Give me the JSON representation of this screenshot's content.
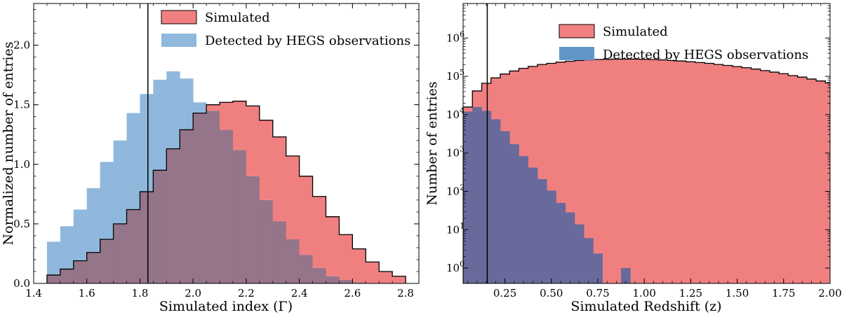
{
  "colors": {
    "simulated": "#f08080",
    "detected_left": "#8fb8dc",
    "overlap_left": "#957589",
    "detected_right": "#6396c8",
    "overlap_right": "#686a9b",
    "edge": "#000000"
  },
  "chart_data": [
    {
      "type": "histogram",
      "xlabel": "Simulated index (Γ)",
      "ylabel": "Normalized number of entries",
      "xlim": [
        1.4,
        2.85
      ],
      "ylim": [
        0,
        2.35
      ],
      "xticks": [
        "1.4",
        "1.6",
        "1.8",
        "2.0",
        "2.2",
        "2.4",
        "2.6",
        "2.8"
      ],
      "yticks": [
        "0.0",
        "0.5",
        "1.0",
        "1.5",
        "2.0"
      ],
      "vline": 1.83,
      "bin_start": 1.45,
      "bin_width": 0.05,
      "legend": {
        "position": "top-right"
      },
      "series": [
        {
          "name": "Simulated",
          "values": [
            0.07,
            0.12,
            0.19,
            0.26,
            0.37,
            0.5,
            0.62,
            0.77,
            0.95,
            1.13,
            1.29,
            1.43,
            1.5,
            1.52,
            1.53,
            1.49,
            1.37,
            1.23,
            1.07,
            0.9,
            0.73,
            0.56,
            0.41,
            0.29,
            0.18,
            0.1,
            0.06
          ]
        },
        {
          "name": "Detected by HEGS observations",
          "values": [
            0.35,
            0.48,
            0.62,
            0.8,
            1.02,
            1.2,
            1.43,
            1.59,
            1.71,
            1.78,
            1.72,
            1.52,
            1.45,
            1.29,
            1.12,
            0.9,
            0.7,
            0.52,
            0.37,
            0.24,
            0.13,
            0.06,
            0.03,
            0.01,
            0.0,
            0.0,
            0.0
          ]
        }
      ]
    },
    {
      "type": "histogram",
      "xlabel": "Simulated Redshift (z)",
      "ylabel": "Number of entries",
      "log_y": true,
      "xlim": [
        0.025,
        2.0
      ],
      "ylim_log10": [
        -0.4,
        6.9
      ],
      "xticks": [
        "0.25",
        "0.50",
        "0.75",
        "1.00",
        "1.25",
        "1.50",
        "1.75",
        "2.00"
      ],
      "yticks": [
        "10^0",
        "10^1",
        "10^2",
        "10^3",
        "10^4",
        "10^5",
        "10^6"
      ],
      "vline": 0.155,
      "bin_start": 0.025,
      "bin_width": 0.05,
      "legend": {
        "position": "top-center"
      },
      "series": [
        {
          "name": "Simulated",
          "values_log10": [
            4.2,
            4.62,
            4.82,
            4.96,
            5.06,
            5.14,
            5.21,
            5.26,
            5.31,
            5.34,
            5.37,
            5.395,
            5.415,
            5.43,
            5.44,
            5.445,
            5.45,
            5.45,
            5.45,
            5.445,
            5.44,
            5.43,
            5.415,
            5.4,
            5.38,
            5.36,
            5.34,
            5.31,
            5.285,
            5.255,
            5.225,
            5.19,
            5.15,
            5.11,
            5.07,
            5.02,
            4.98,
            4.93,
            4.88,
            4.83
          ]
        },
        {
          "name": "Detected by HEGS observations",
          "values_log10": [
            4.08,
            4.2,
            4.1,
            3.88,
            3.57,
            3.23,
            2.92,
            2.62,
            2.32,
            2.02,
            1.7,
            1.45,
            1.14,
            0.78,
            0.38,
            -0.5,
            -0.5,
            0.0
          ]
        }
      ]
    }
  ],
  "legend_left": {
    "simulated": "Simulated",
    "detected": "Detected by HEGS observations"
  },
  "legend_right": {
    "simulated": "Simulated",
    "detected": "Detected by HEGS observations"
  }
}
